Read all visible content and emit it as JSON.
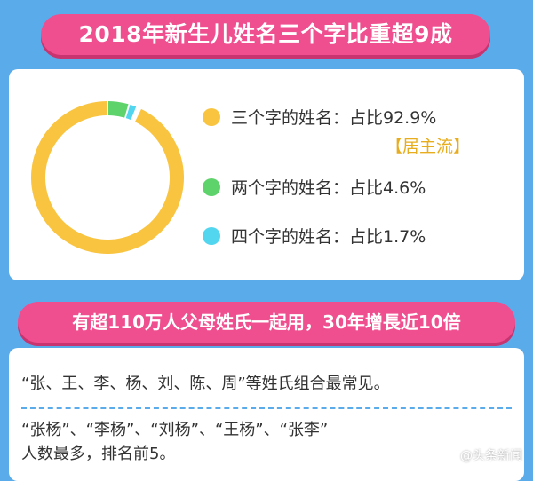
{
  "header": {
    "title": "2018年新生儿姓名三个字比重超9成"
  },
  "chart_data": {
    "type": "pie",
    "categories": [
      "三个字的姓名",
      "两个字的姓名",
      "四个字的姓名"
    ],
    "values": [
      92.9,
      4.6,
      1.7
    ],
    "colors": [
      "#f9c440",
      "#5fd36b",
      "#52d6ef"
    ],
    "legend_labels": [
      "三个字的姓名：占比92.9%",
      "两个字的姓名：占比4.6%",
      "四个字的姓名：占比1.7%"
    ],
    "annotation": "【居主流】"
  },
  "section2": {
    "title": "有超110万人父母姓氏一起用，30年增長近10倍",
    "line1": "“张、王、李、杨、刘、陈、周”等姓氏组合最常见。",
    "line2": "“张杨”、“李杨”、“刘杨”、“王杨”、“张李”",
    "line3": "人数最多，排名前5。"
  },
  "watermark": {
    "text": "@头条新闻",
    "icon": "weibo-icon"
  }
}
